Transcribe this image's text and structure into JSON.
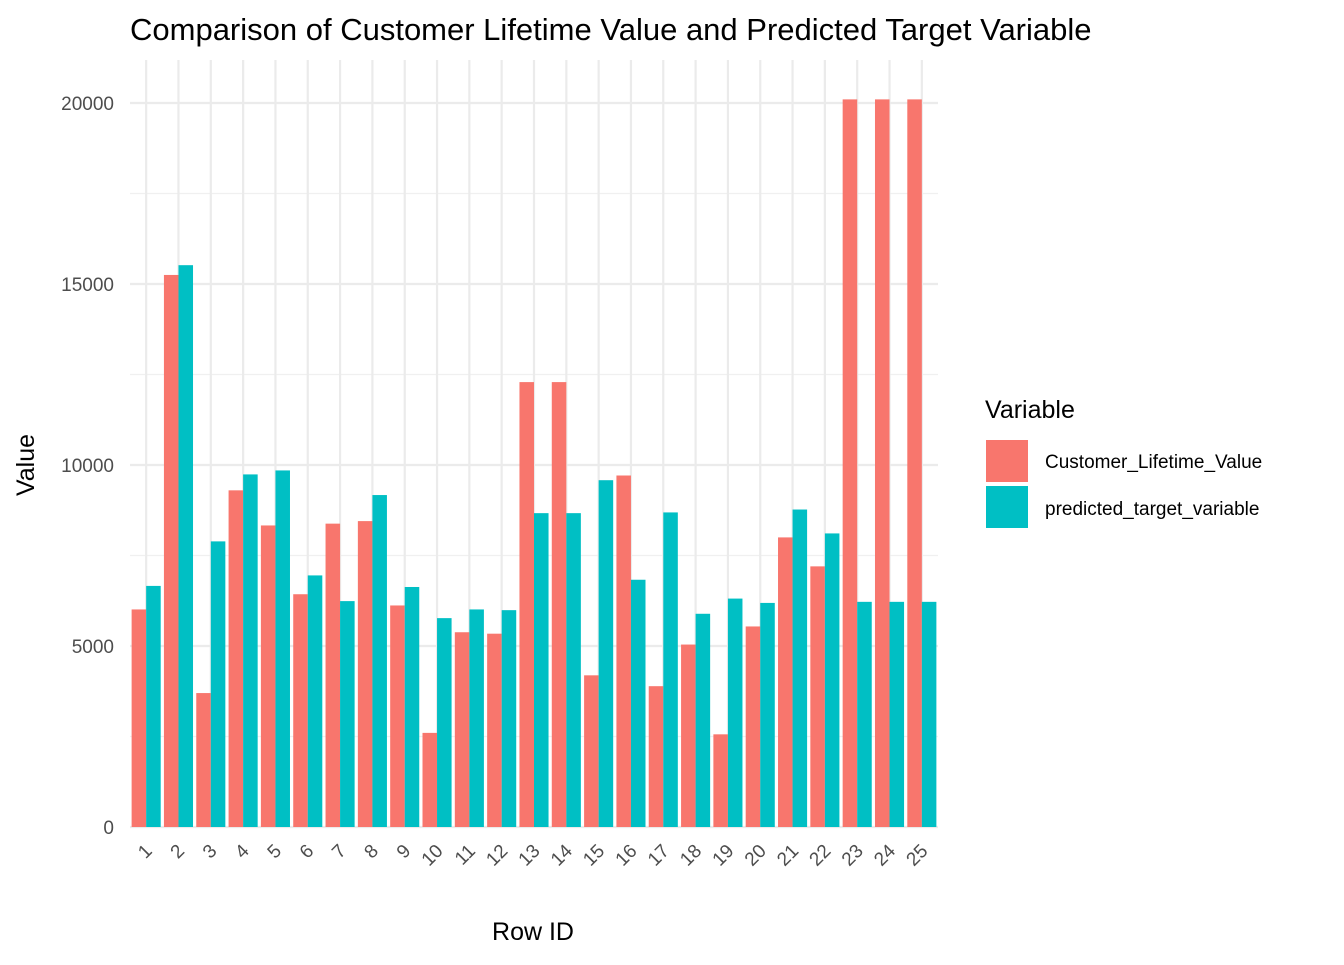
{
  "chart_data": {
    "type": "bar",
    "title": "Comparison of Customer Lifetime Value and Predicted Target Variable",
    "xlabel": "Row ID",
    "ylabel": "Value",
    "categories": [
      "1",
      "2",
      "3",
      "4",
      "5",
      "6",
      "7",
      "8",
      "9",
      "10",
      "11",
      "12",
      "13",
      "14",
      "15",
      "16",
      "17",
      "18",
      "19",
      "20",
      "21",
      "22",
      "23",
      "24",
      "25"
    ],
    "ylim": [
      0,
      21000
    ],
    "yticks": [
      0,
      5000,
      10000,
      15000,
      20000
    ],
    "ytick_labels": [
      "0",
      "5000",
      "10000",
      "15000",
      "20000"
    ],
    "grid": true,
    "legend": {
      "title": "Variable",
      "placement": "right"
    },
    "series": [
      {
        "name": "Customer_Lifetime_Value",
        "color": "#F8766D",
        "values": [
          6010,
          15250,
          3700,
          9300,
          8330,
          6430,
          8380,
          8450,
          6120,
          2600,
          5380,
          5340,
          12290,
          12290,
          4190,
          9710,
          3890,
          5040,
          2560,
          5540,
          8000,
          7200,
          20100,
          20100,
          20100
        ]
      },
      {
        "name": "predicted_target_variable",
        "color": "#00BFC4",
        "values": [
          6660,
          15520,
          7890,
          9740,
          9850,
          6950,
          6240,
          9170,
          6630,
          5770,
          6010,
          5990,
          8670,
          8670,
          9580,
          6830,
          8690,
          5890,
          6310,
          6190,
          8770,
          8110,
          6220,
          6220,
          6220
        ]
      }
    ]
  }
}
